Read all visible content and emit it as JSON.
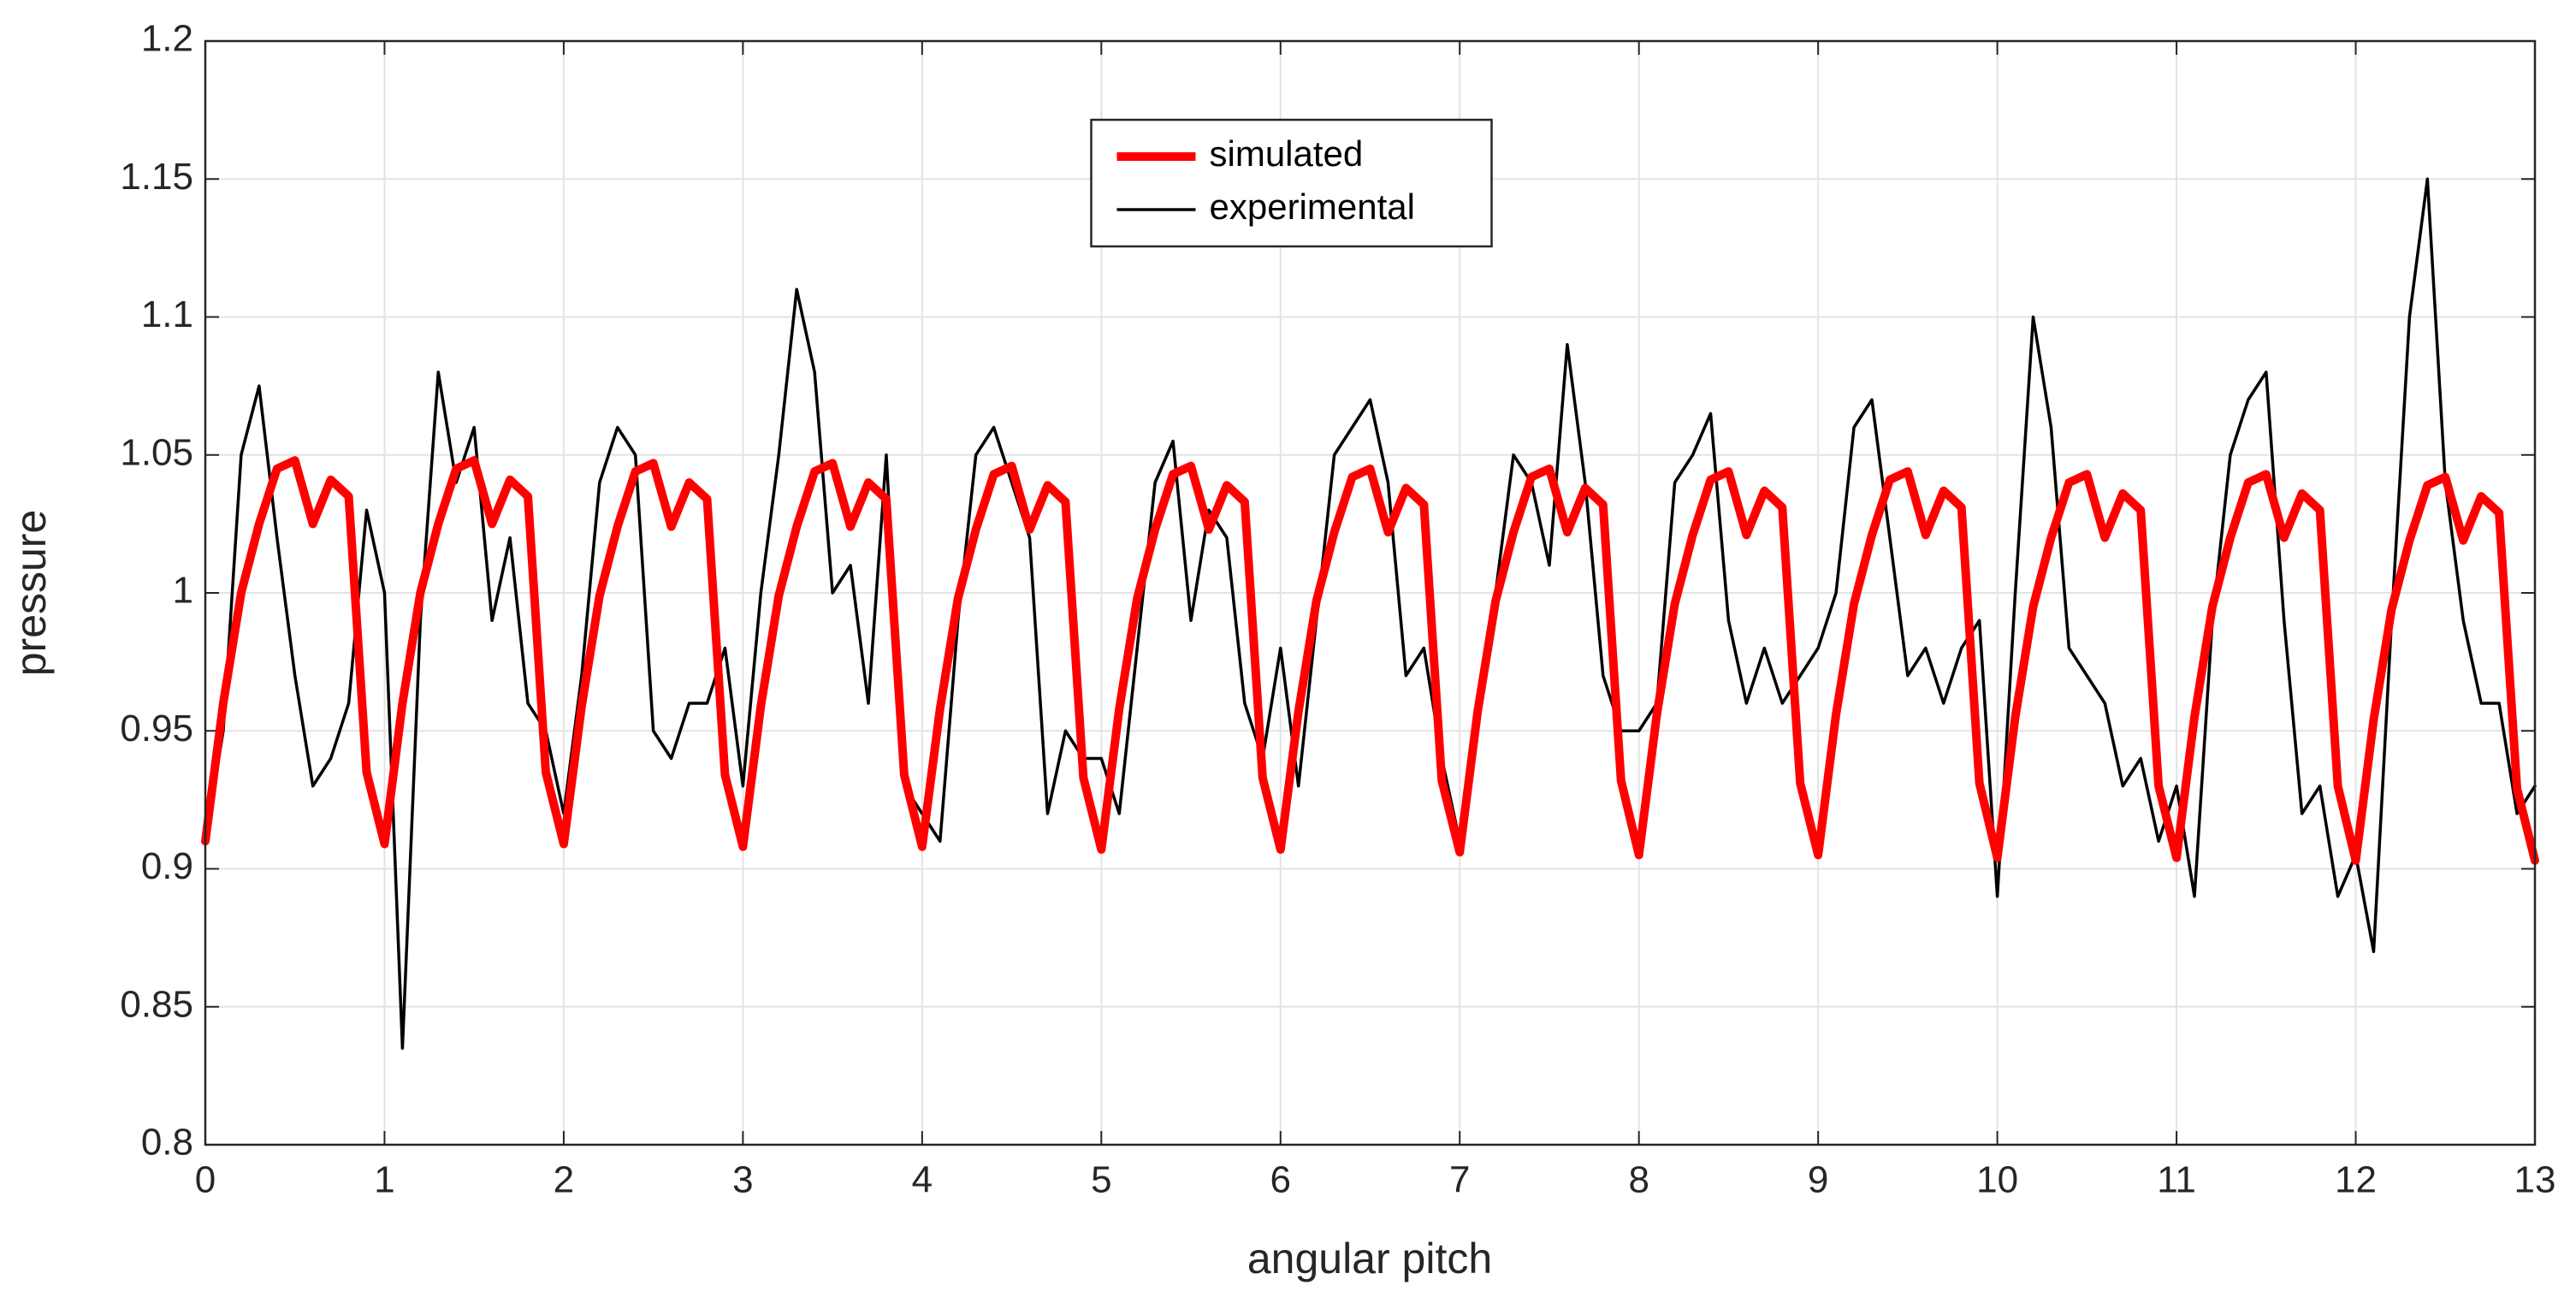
{
  "chart_data": {
    "type": "line",
    "xlabel": "angular pitch",
    "ylabel": "pressure",
    "xlim": [
      0,
      13
    ],
    "ylim": [
      0.8,
      1.2
    ],
    "xticks": [
      0,
      1,
      2,
      3,
      4,
      5,
      6,
      7,
      8,
      9,
      10,
      11,
      12,
      13
    ],
    "yticks": [
      0.8,
      0.85,
      0.9,
      0.95,
      1,
      1.05,
      1.1,
      1.15,
      1.2
    ],
    "grid": true,
    "legend": "north",
    "x": [
      0,
      0.1,
      0.2,
      0.3,
      0.4,
      0.5,
      0.6,
      0.7,
      0.8,
      0.9,
      1,
      1.1,
      1.2,
      1.3,
      1.4,
      1.5,
      1.6,
      1.7,
      1.8,
      1.9,
      2,
      2.1,
      2.2,
      2.3,
      2.4,
      2.5,
      2.6,
      2.7,
      2.8,
      2.9,
      3,
      3.1,
      3.2,
      3.3,
      3.4,
      3.5,
      3.6,
      3.7,
      3.8,
      3.9,
      4,
      4.1,
      4.2,
      4.3,
      4.4,
      4.5,
      4.6,
      4.7,
      4.8,
      4.9,
      5,
      5.1,
      5.2,
      5.3,
      5.4,
      5.5,
      5.6,
      5.7,
      5.8,
      5.9,
      6,
      6.1,
      6.2,
      6.3,
      6.4,
      6.5,
      6.6,
      6.7,
      6.8,
      6.9,
      7,
      7.1,
      7.2,
      7.3,
      7.4,
      7.5,
      7.6,
      7.7,
      7.8,
      7.9,
      8,
      8.1,
      8.2,
      8.3,
      8.4,
      8.5,
      8.6,
      8.7,
      8.8,
      8.9,
      9,
      9.1,
      9.2,
      9.3,
      9.4,
      9.5,
      9.6,
      9.7,
      9.8,
      9.9,
      10,
      10.1,
      10.2,
      10.3,
      10.4,
      10.5,
      10.6,
      10.7,
      10.8,
      10.9,
      11,
      11.1,
      11.2,
      11.3,
      11.4,
      11.5,
      11.6,
      11.7,
      11.8,
      11.9,
      12,
      12.1,
      12.2,
      12.3,
      12.4,
      12.5,
      12.6,
      12.7,
      12.8,
      12.9,
      13
    ],
    "series": [
      {
        "name": "simulated",
        "color": "#ff0000",
        "width": 10,
        "values": [
          0.91,
          0.96,
          1.0,
          1.025,
          1.045,
          1.048,
          1.025,
          1.041,
          1.035,
          0.935,
          0.909,
          0.96,
          1.0,
          1.025,
          1.045,
          1.048,
          1.025,
          1.041,
          1.035,
          0.935,
          0.909,
          0.959,
          0.999,
          1.024,
          1.044,
          1.047,
          1.024,
          1.04,
          1.034,
          0.934,
          0.908,
          0.959,
          0.999,
          1.024,
          1.044,
          1.047,
          1.024,
          1.04,
          1.034,
          0.934,
          0.908,
          0.958,
          0.998,
          1.023,
          1.043,
          1.046,
          1.023,
          1.039,
          1.033,
          0.933,
          0.907,
          0.958,
          0.998,
          1.023,
          1.043,
          1.046,
          1.023,
          1.039,
          1.033,
          0.933,
          0.907,
          0.957,
          0.997,
          1.022,
          1.042,
          1.045,
          1.022,
          1.038,
          1.032,
          0.932,
          0.906,
          0.957,
          0.997,
          1.022,
          1.042,
          1.045,
          1.022,
          1.038,
          1.032,
          0.932,
          0.905,
          0.956,
          0.996,
          1.021,
          1.041,
          1.044,
          1.021,
          1.037,
          1.031,
          0.931,
          0.905,
          0.956,
          0.996,
          1.021,
          1.041,
          1.044,
          1.021,
          1.037,
          1.031,
          0.931,
          0.904,
          0.955,
          0.995,
          1.02,
          1.04,
          1.043,
          1.02,
          1.036,
          1.03,
          0.93,
          0.904,
          0.955,
          0.995,
          1.02,
          1.04,
          1.043,
          1.02,
          1.036,
          1.03,
          0.93,
          0.903,
          0.954,
          0.994,
          1.019,
          1.039,
          1.042,
          1.019,
          1.035,
          1.029,
          0.929,
          0.903
        ]
      },
      {
        "name": "experimental",
        "color": "#000000",
        "width": 3.5,
        "values": [
          0.91,
          0.95,
          1.05,
          1.075,
          1.02,
          0.97,
          0.93,
          0.94,
          0.96,
          1.03,
          1.0,
          0.835,
          0.99,
          1.08,
          1.04,
          1.06,
          0.99,
          1.02,
          0.96,
          0.95,
          0.92,
          0.97,
          1.04,
          1.06,
          1.05,
          0.95,
          0.94,
          0.96,
          0.96,
          0.98,
          0.93,
          1.0,
          1.05,
          1.11,
          1.08,
          1.0,
          1.01,
          0.96,
          1.05,
          0.93,
          0.92,
          0.91,
          0.99,
          1.05,
          1.06,
          1.04,
          1.02,
          0.92,
          0.95,
          0.94,
          0.94,
          0.92,
          0.98,
          1.04,
          1.055,
          0.99,
          1.03,
          1.02,
          0.96,
          0.94,
          0.98,
          0.93,
          0.99,
          1.05,
          1.06,
          1.07,
          1.04,
          0.97,
          0.98,
          0.94,
          0.91,
          0.96,
          1.0,
          1.05,
          1.04,
          1.01,
          1.09,
          1.04,
          0.97,
          0.95,
          0.95,
          0.96,
          1.04,
          1.05,
          1.065,
          0.99,
          0.96,
          0.98,
          0.96,
          0.97,
          0.98,
          1.0,
          1.06,
          1.07,
          1.02,
          0.97,
          0.98,
          0.96,
          0.98,
          0.99,
          0.89,
          1.0,
          1.1,
          1.06,
          0.98,
          0.97,
          0.96,
          0.93,
          0.94,
          0.91,
          0.93,
          0.89,
          0.99,
          1.05,
          1.07,
          1.08,
          0.99,
          0.92,
          0.93,
          0.89,
          0.905,
          0.87,
          0.99,
          1.1,
          1.15,
          1.04,
          0.99,
          0.96,
          0.96,
          0.92,
          0.93
        ]
      }
    ]
  }
}
